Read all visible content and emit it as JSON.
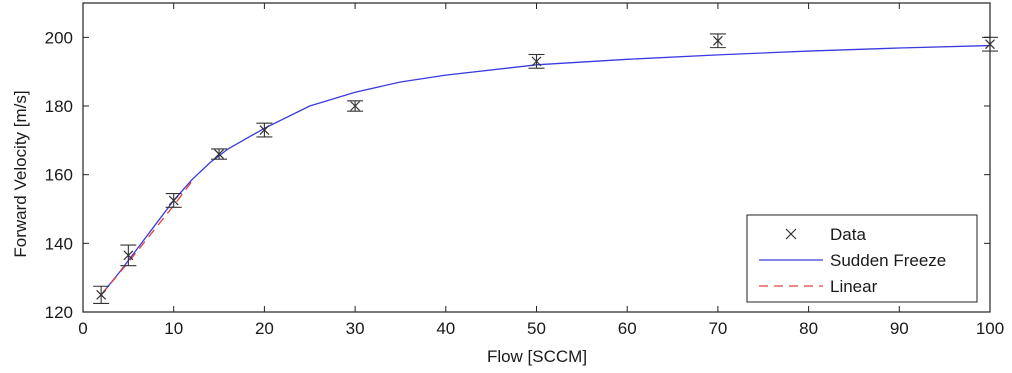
{
  "chart_data": {
    "type": "line",
    "xlabel": "Flow [SCCM]",
    "ylabel": "Forward Velocity [m/s]",
    "xlim": [
      0,
      100
    ],
    "ylim": [
      120,
      210
    ],
    "x_ticks": [
      0,
      10,
      20,
      30,
      40,
      50,
      60,
      70,
      80,
      90,
      100
    ],
    "y_ticks": [
      120,
      140,
      160,
      180,
      200
    ],
    "grid": false,
    "legend_position": "bottom-right",
    "series": [
      {
        "name": "Data",
        "kind": "scatter",
        "marker": "x",
        "color": "#333333",
        "x": [
          2,
          5,
          10,
          15,
          20,
          30,
          50,
          70,
          100
        ],
        "y": [
          125,
          136.5,
          152.5,
          166,
          173,
          180,
          193,
          199,
          198
        ],
        "yerr": [
          2.5,
          3,
          2,
          1.5,
          2,
          1.5,
          2,
          2,
          2
        ]
      },
      {
        "name": "Sudden Freeze",
        "kind": "line",
        "color": "#3a3adf",
        "dash": "solid",
        "x": [
          2,
          4,
          6,
          8,
          10,
          12,
          14,
          16,
          18,
          20,
          25,
          30,
          35,
          40,
          50,
          60,
          70,
          80,
          90,
          100
        ],
        "y": [
          125,
          131.5,
          138.5,
          145.5,
          152.5,
          158.5,
          163.5,
          167.5,
          170.5,
          173.5,
          180,
          184,
          187,
          189,
          192,
          193.6,
          194.9,
          196,
          196.9,
          197.6
        ]
      },
      {
        "name": "Linear",
        "kind": "line",
        "color": "#e84040",
        "dash": "dashed",
        "x": [
          2,
          5,
          10,
          12
        ],
        "y": [
          125,
          134.5,
          151,
          158
        ]
      }
    ]
  }
}
